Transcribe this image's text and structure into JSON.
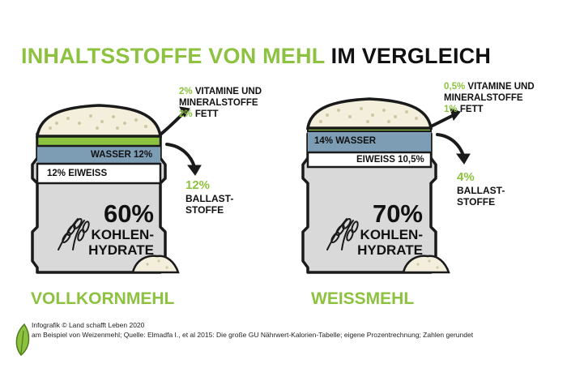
{
  "title": {
    "highlight": "INHALTSSTOFFE VON MEHL",
    "rest": "IM VERGLEICH"
  },
  "colors": {
    "green": "#8cc23f",
    "blue": "#7d9db4",
    "gray": "#d9d9d9",
    "flour": "#f3efdc",
    "outline": "#1a1a1a"
  },
  "left": {
    "name": "VOLLKORNMEHL",
    "wasser": "WASSER 12%",
    "eiweiss": "12% EIWEISS",
    "kh_percent": "60%",
    "kh_line1": "KOHLEN-",
    "kh_line2": "HYDRATE",
    "vitamine_percent": "2%",
    "vitamine_text1": "VITAMINE UND",
    "vitamine_text2": "MINERALSTOFFE",
    "fett_percent": "2%",
    "fett_text": "FETT",
    "ballast_percent": "12%",
    "ballast_line1": "BALLAST-",
    "ballast_line2": "STOFFE"
  },
  "right": {
    "name": "WEISSMEHL",
    "wasser": "14% WASSER",
    "eiweiss": "EIWEISS 10,5%",
    "kh_percent": "70%",
    "kh_line1": "KOHLEN-",
    "kh_line2": "HYDRATE",
    "vitamine_percent": "0,5%",
    "vitamine_text1": "VITAMINE UND",
    "vitamine_text2": "MINERALSTOFFE",
    "fett_percent": "1%",
    "fett_text": "FETT",
    "ballast_percent": "4%",
    "ballast_line1": "BALLAST-",
    "ballast_line2": "STOFFE"
  },
  "footer": {
    "line1": "Infografik © Land schafft Leben 2020",
    "line2": "am Beispiel von Weizenmehl; Quelle: Elmadfa I., et al 2015: Die große GU Nährwert-Kalorien-Tabelle; eigene Prozentrechnung; Zahlen gerundet"
  },
  "icons": [
    "wheat-icon",
    "flour-pile-icon",
    "arrow-icon",
    "logo-leaf-icon"
  ]
}
